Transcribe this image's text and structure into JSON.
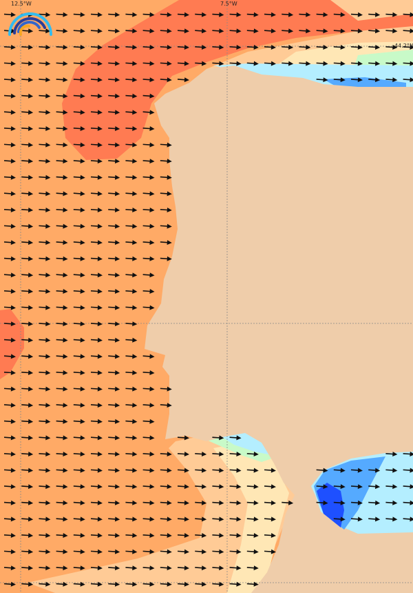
{
  "map": {
    "grid_labels": {
      "lon_west": "12.5°W",
      "lon_east": "7.5°W",
      "lat_north": "44.2°N"
    },
    "colors": {
      "land": "#EFCDAA",
      "sea_base": "#FFAA66",
      "high": "#FF7B52",
      "mid_light": "#FFCB96",
      "pale": "#FFE7B5",
      "green": "#C8FAC8",
      "light_blue": "#B4EEFF",
      "blue": "#55AAFF",
      "dark_blue": "#1E50FF",
      "arrow": "#111111",
      "gridline": "#888888"
    },
    "arrow_direction": "east",
    "logo_icon": "rainbow-arcs-logo"
  }
}
